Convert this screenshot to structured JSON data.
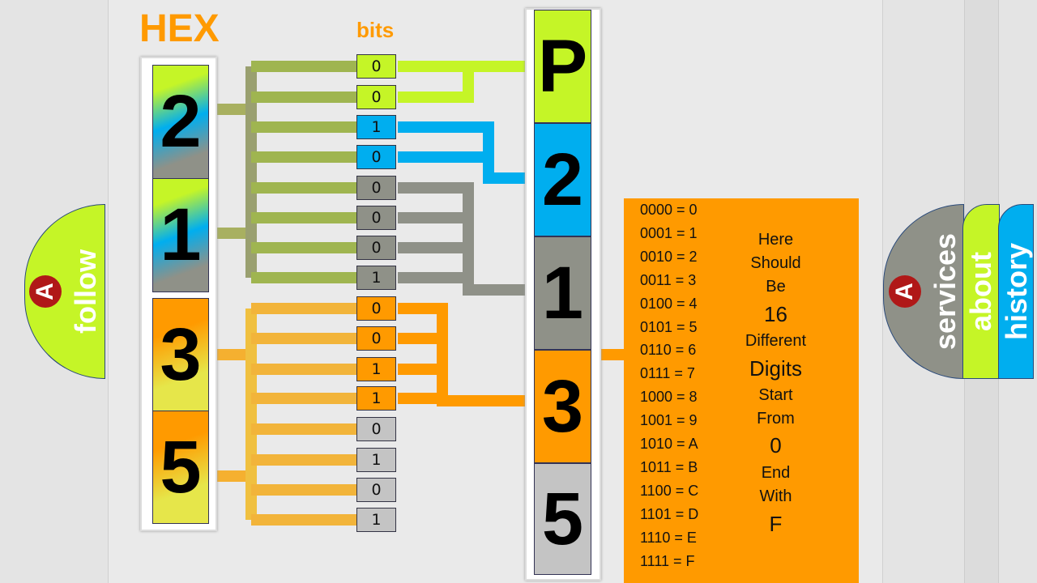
{
  "title": "HEX",
  "bits_label": "bits",
  "hex_digits": [
    "2",
    "1",
    "3",
    "5"
  ],
  "bits": [
    "0",
    "0",
    "1",
    "0",
    "0",
    "0",
    "0",
    "1",
    "0",
    "0",
    "1",
    "1",
    "0",
    "1",
    "0",
    "1"
  ],
  "result": [
    "P",
    "2",
    "1",
    "3",
    "5"
  ],
  "table": [
    "0000 = 0",
    "0001 = 1",
    "0010 = 2",
    "0011 = 3",
    "0100 = 4",
    "0101 = 5",
    "0110 = 6",
    "0111 = 7",
    "1000 = 8",
    "1001 = 9",
    "1010 = A",
    "1011 = B",
    "1100 = C",
    "1101 = D",
    "1110 = E",
    "1111 = F"
  ],
  "note": [
    "Here",
    "Should",
    "Be",
    "16",
    "Different",
    "Digits",
    "Start",
    "From",
    "0",
    "End",
    "With",
    "F"
  ],
  "tabs": {
    "follow": "follow",
    "services": "services",
    "about": "about",
    "history": "history"
  },
  "colors": {
    "lime": "#c5f527",
    "blue": "#00aeef",
    "gray": "#8f9188",
    "orange": "#ff9a00",
    "light_gray": "#c4c4c4",
    "yellow": "#e6e64a"
  }
}
